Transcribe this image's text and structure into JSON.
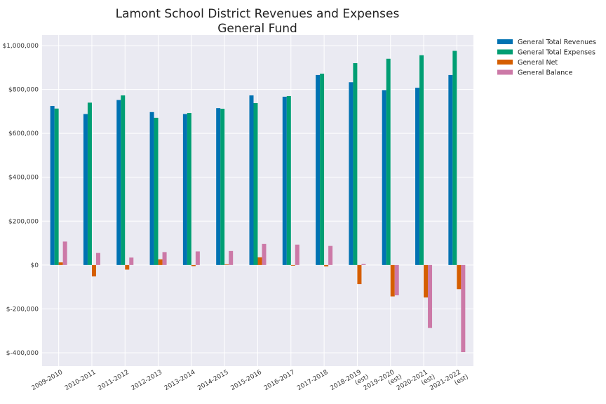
{
  "chart_data": {
    "type": "bar",
    "title": "Lamont School District Revenues and Expenses",
    "subtitle": "General Fund",
    "xlabel": "",
    "ylabel": "",
    "ylim": [
      -400000,
      1000000
    ],
    "yticks": [
      -400000,
      -200000,
      0,
      200000,
      400000,
      600000,
      800000,
      1000000
    ],
    "ytick_labels": [
      "$-400,000",
      "$-200,000",
      "$0",
      "$200,000",
      "$400,000",
      "$600,000",
      "$800,000",
      "$1,000,000"
    ],
    "grid": true,
    "legend_position": "outside-top-right",
    "categories": [
      [
        "2009-2010"
      ],
      [
        "2010-2011"
      ],
      [
        "2011-2012"
      ],
      [
        "2012-2013"
      ],
      [
        "2013-2014"
      ],
      [
        "2014-2015"
      ],
      [
        "2015-2016"
      ],
      [
        "2016-2017"
      ],
      [
        "2017-2018"
      ],
      [
        "2018-2019",
        "(est)"
      ],
      [
        "2019-2020",
        "(est)"
      ],
      [
        "2020-2021",
        "(est)"
      ],
      [
        "2021-2022",
        "(est)"
      ]
    ],
    "series": [
      {
        "name": "General Total Revenues",
        "color": "#0072b2",
        "values": [
          725000,
          688000,
          752000,
          697000,
          688000,
          715000,
          773000,
          767000,
          866000,
          833000,
          797000,
          808000,
          866000
        ]
      },
      {
        "name": "General Total Expenses",
        "color": "#009e73",
        "values": [
          713000,
          740000,
          773000,
          671000,
          693000,
          712000,
          738000,
          770000,
          872000,
          920000,
          940000,
          956000,
          976000
        ]
      },
      {
        "name": "General Net",
        "color": "#d55e00",
        "values": [
          12000,
          -52000,
          -21000,
          26000,
          -5000,
          3000,
          35000,
          -3000,
          -6000,
          -87000,
          -143000,
          -148000,
          -110000
        ]
      },
      {
        "name": "General Balance",
        "color": "#cc79a7",
        "values": [
          107000,
          55000,
          34000,
          59000,
          62000,
          64000,
          96000,
          93000,
          87000,
          5000,
          -138000,
          -287000,
          -397000
        ]
      }
    ]
  }
}
